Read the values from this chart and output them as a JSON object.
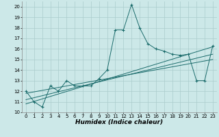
{
  "title": "",
  "xlabel": "Humidex (Indice chaleur)",
  "bg_color": "#cce8e8",
  "line_color": "#1a6b6b",
  "grid_color": "#aacccc",
  "xlim": [
    -0.5,
    23.5
  ],
  "ylim": [
    10,
    20.5
  ],
  "yticks": [
    10,
    11,
    12,
    13,
    14,
    15,
    16,
    17,
    18,
    19,
    20
  ],
  "xticks": [
    0,
    1,
    2,
    3,
    4,
    5,
    6,
    7,
    8,
    9,
    10,
    11,
    12,
    13,
    14,
    15,
    16,
    17,
    18,
    19,
    20,
    21,
    22,
    23
  ],
  "series1_x": [
    0,
    1,
    2,
    3,
    4,
    5,
    6,
    7,
    8,
    9,
    10,
    11,
    12,
    13,
    14,
    15,
    16,
    17,
    18,
    19,
    20,
    21,
    22,
    23
  ],
  "series1_y": [
    12.0,
    11.0,
    10.5,
    12.5,
    12.0,
    13.0,
    12.5,
    12.5,
    12.5,
    13.2,
    14.0,
    17.8,
    17.8,
    20.2,
    18.0,
    16.5,
    16.0,
    15.8,
    15.5,
    15.4,
    15.5,
    13.0,
    13.0,
    16.3
  ],
  "trend1_x": [
    0,
    23
  ],
  "trend1_y": [
    10.8,
    16.2
  ],
  "trend2_x": [
    0,
    23
  ],
  "trend2_y": [
    11.2,
    15.5
  ],
  "trend3_x": [
    0,
    23
  ],
  "trend3_y": [
    11.8,
    15.0
  ]
}
